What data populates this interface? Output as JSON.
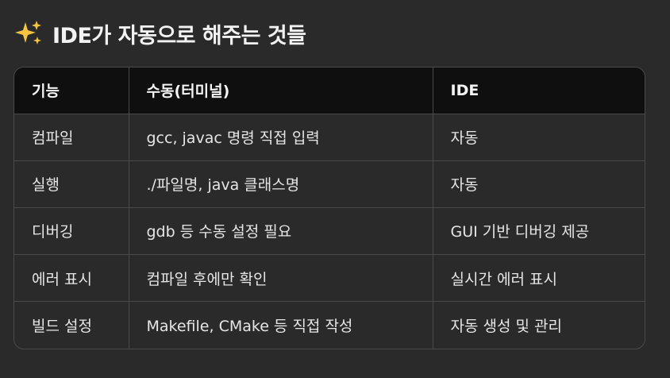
{
  "heading": {
    "icon": "sparkles-icon",
    "title": "IDE가 자동으로 해주는 것들"
  },
  "table": {
    "columns": [
      "기능",
      "수동(터미널)",
      "IDE"
    ],
    "rows": [
      [
        "컴파일",
        "gcc, javac 명령 직접 입력",
        "자동"
      ],
      [
        "실행",
        "./파일명, java 클래스명",
        "자동"
      ],
      [
        "디버깅",
        "gdb 등 수동 설정 필요",
        "GUI 기반 디버깅 제공"
      ],
      [
        "에러 표시",
        "컴파일 후에만 확인",
        "실시간 에러 표시"
      ],
      [
        "빌드 설정",
        "Makefile, CMake 등 직접 작성",
        "자동 생성 및 관리"
      ]
    ]
  },
  "colors": {
    "background": "#2a2a2a",
    "header_background": "#0f0f0f",
    "border": "#4a4a4a",
    "sparkle": "#f5c542"
  }
}
